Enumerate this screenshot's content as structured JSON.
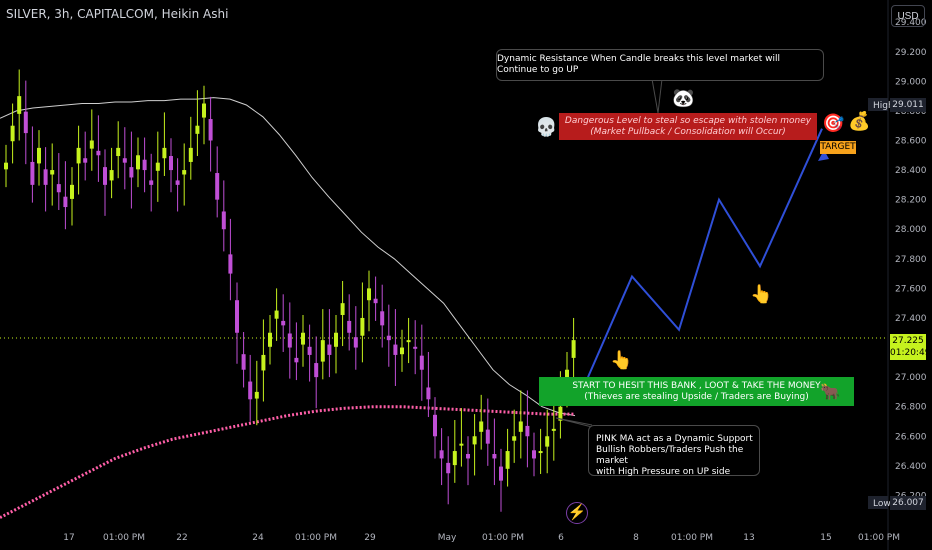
{
  "header": {
    "title": "SILVER, 3h, CAPITALCOM, Heikin Ashi",
    "currency": "USD"
  },
  "price_axis": {
    "ticks": [
      "29.400",
      "29.200",
      "29.000",
      "28.800",
      "28.600",
      "28.400",
      "28.200",
      "28.000",
      "27.800",
      "27.600",
      "27.400",
      "27.200",
      "27.000",
      "26.800",
      "26.600",
      "26.400",
      "26.200"
    ],
    "high_label": "High",
    "high_value": "29.011",
    "low_label": "Low",
    "low_value": "26.007",
    "last_price": "27.225",
    "countdown": "01:20:49"
  },
  "time_axis": {
    "ticks": [
      "17",
      "01:00 PM",
      "22",
      "24",
      "01:00 PM",
      "29",
      "May",
      "01:00 PM",
      "6",
      "8",
      "01:00 PM",
      "13",
      "15",
      "01:00 PM"
    ]
  },
  "annotations": {
    "dynamic_resistance": "Dynamic Resistance When Candle breaks this level market will Continue to go UP",
    "danger_line1": "Dangerous Level to steal so escape with stolen money",
    "danger_line2": "(Market Pullback / Consolidation will Occur)",
    "heist_line1": "START TO HESIT THIS BANK , LOOT & TAKE THE MONEY",
    "heist_line2": "(Thieves are stealing Upside / Traders are Buying)",
    "ma_line1": "PINK MA act as a Dynamic Support",
    "ma_line2": "Bullish Robbers/Traders Push the market",
    "ma_line3": "with High Pressure on UP side",
    "target": "TARGET"
  },
  "icons": {
    "skull": "💀",
    "panda": "🐼",
    "target": "🎯",
    "moneybag": "💰",
    "bull": "🐂",
    "hand": "👆",
    "bolt": "⚡"
  },
  "colors": {
    "bull": "#c6f21e",
    "bear": "#c04fd6",
    "ma_white": "#cfcfcf",
    "ma_pink": "#ff5fa8",
    "projection": "#2f4fd8",
    "last_price_bg": "#c6f21e"
  },
  "chart_data": {
    "type": "candlestick",
    "symbol": "SILVER",
    "timeframe": "3h",
    "style": "Heikin Ashi",
    "ylim": [
      26.0,
      29.55
    ],
    "y_ticks": [
      29.4,
      29.2,
      29.0,
      28.8,
      28.6,
      28.4,
      28.2,
      28.0,
      27.8,
      27.6,
      27.4,
      27.2,
      27.0,
      26.8,
      26.6,
      26.4,
      26.2
    ],
    "high": 29.011,
    "low": 26.007,
    "last": 27.225,
    "close_series": [
      28.45,
      28.7,
      28.9,
      28.65,
      28.3,
      28.55,
      28.3,
      28.4,
      28.25,
      28.15,
      28.3,
      28.55,
      28.45,
      28.6,
      28.5,
      28.3,
      28.4,
      28.55,
      28.45,
      28.35,
      28.5,
      28.4,
      28.3,
      28.45,
      28.55,
      28.4,
      28.3,
      28.4,
      28.55,
      28.7,
      28.85,
      28.6,
      28.2,
      28.0,
      27.7,
      27.3,
      27.05,
      26.85,
      26.9,
      27.15,
      27.3,
      27.45,
      27.35,
      27.2,
      27.1,
      27.3,
      27.15,
      27.0,
      27.25,
      27.15,
      27.3,
      27.5,
      27.3,
      27.2,
      27.4,
      27.6,
      27.5,
      27.35,
      27.25,
      27.15,
      27.2,
      27.25,
      27.2,
      27.05,
      26.85,
      26.6,
      26.45,
      26.35,
      26.5,
      26.55,
      26.45,
      26.6,
      26.7,
      26.55,
      26.45,
      26.3,
      26.5,
      26.6,
      26.7,
      26.6,
      26.45,
      26.5,
      26.6,
      26.65,
      26.8,
      27.05,
      27.25
    ],
    "ma_white": [
      28.75,
      28.8,
      28.82,
      28.83,
      28.84,
      28.85,
      28.85,
      28.86,
      28.86,
      28.87,
      28.87,
      28.88,
      28.88,
      28.89,
      28.88,
      28.84,
      28.76,
      28.64,
      28.5,
      28.35,
      28.22,
      28.1,
      27.98,
      27.88,
      27.8,
      27.7,
      27.6,
      27.5,
      27.35,
      27.2,
      27.05,
      26.95,
      26.88,
      26.8,
      26.76,
      26.74
    ],
    "ma_pink": [
      26.05,
      26.15,
      26.25,
      26.35,
      26.45,
      26.52,
      26.58,
      26.62,
      26.66,
      26.7,
      26.74,
      26.77,
      26.79,
      26.8,
      26.8,
      26.79,
      26.78,
      26.77,
      26.76,
      26.75,
      26.75
    ],
    "projection": [
      [
        27.0,
        "May 6"
      ],
      [
        27.68,
        "May 8"
      ],
      [
        27.32,
        "May 9"
      ],
      [
        28.2,
        "May 11"
      ],
      [
        27.75,
        "May 13"
      ],
      [
        28.68,
        "May 15"
      ]
    ]
  }
}
